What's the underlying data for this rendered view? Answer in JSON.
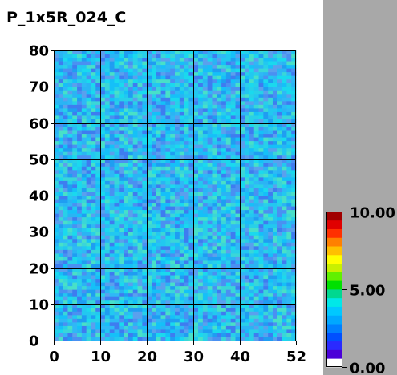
{
  "chart_data": {
    "type": "heatmap",
    "title": "P_1x5R_024_C",
    "xlabel": "",
    "ylabel": "",
    "xlim": [
      0,
      52
    ],
    "ylim": [
      0,
      80
    ],
    "x_ticks": [
      "0",
      "10",
      "20",
      "30",
      "40",
      "52"
    ],
    "y_ticks": [
      "0",
      "10",
      "20",
      "30",
      "40",
      "50",
      "60",
      "70",
      "80"
    ],
    "x_tick_values": [
      0,
      10,
      20,
      30,
      40,
      52
    ],
    "y_tick_values": [
      0,
      10,
      20,
      30,
      40,
      50,
      60,
      70,
      80
    ],
    "grid": true,
    "grid_x_values": [
      10,
      20,
      30,
      40
    ],
    "grid_y_values": [
      10,
      20,
      30,
      40,
      50,
      60,
      70
    ],
    "columns": 52,
    "rows": 80,
    "value_range": [
      0,
      10
    ],
    "typical_value_range": [
      2.5,
      4.5
    ],
    "colorbar": {
      "min": 0,
      "max": 10,
      "tick_labels": [
        "10.00",
        "5.00",
        "0.00"
      ],
      "tick_values": [
        10,
        5,
        0
      ],
      "placement": "right",
      "colors": [
        "#ffffff",
        "#4a00d8",
        "#2a2aff",
        "#0050ff",
        "#0080ff",
        "#00a8ff",
        "#00c8ff",
        "#00e8e8",
        "#00d890",
        "#00e000",
        "#60f000",
        "#c8f000",
        "#ffff00",
        "#ffc000",
        "#ff8000",
        "#ff3000",
        "#e00000",
        "#a00000"
      ]
    },
    "palette": [
      "#3e7cf0",
      "#4a90f2",
      "#1f9df2",
      "#2ab4f4",
      "#22c8f0",
      "#1ad9ee",
      "#3ad6d8",
      "#2fb8f6",
      "#5aa0ee",
      "#15c0f8",
      "#28d0e8",
      "#48e0c8"
    ]
  },
  "colors": {
    "outer_background": "#a8a8a8",
    "panel_background": "#ffffff",
    "grid": "#000000"
  }
}
